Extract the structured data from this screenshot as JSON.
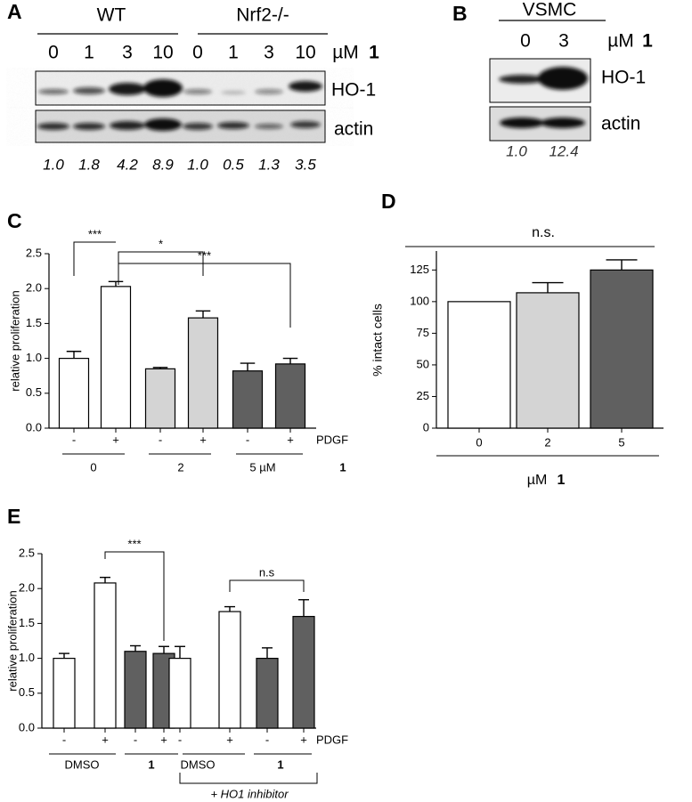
{
  "blot_a": {
    "label": "A",
    "groups": [
      "WT",
      "Nrf2-/-"
    ],
    "doses": [
      "0",
      "1",
      "3",
      "10",
      "0",
      "1",
      "3",
      "10"
    ],
    "unit": "µM",
    "compound": "1",
    "bands": [
      "HO-1",
      "actin"
    ],
    "quant": [
      "1.0",
      "1.8",
      "4.2",
      "8.9",
      "1.0",
      "0.5",
      "1.3",
      "3.5"
    ]
  },
  "blot_b": {
    "label": "B",
    "cells": "VSMC",
    "doses": [
      "0",
      "3"
    ],
    "unit": "µM",
    "compound": "1",
    "bands": [
      "HO-1",
      "actin"
    ],
    "quant": [
      "1.0",
      "12.4"
    ]
  },
  "chart_data": [
    {
      "type": "bar",
      "panel": "C",
      "ylabel": "relative proliferation",
      "categories": [
        "-",
        "+",
        "-",
        "+",
        "-",
        "+"
      ],
      "values": [
        1.0,
        2.03,
        0.85,
        1.58,
        0.82,
        0.92
      ],
      "errors": [
        0.1,
        0.07,
        0.02,
        0.1,
        0.11,
        0.08
      ],
      "colors": [
        "#ffffff",
        "#ffffff",
        "#d4d4d4",
        "#d4d4d4",
        "#606060",
        "#606060"
      ],
      "ylim": [
        0,
        2.5
      ],
      "yticks": [
        {
          "value": 0,
          "label": "0.0"
        },
        0.5,
        {
          "value": 1,
          "label": "1.0"
        },
        1.5,
        {
          "value": 2,
          "label": "2.0"
        },
        2.5
      ],
      "row_label": "PDGF",
      "groups": [
        "0",
        "2",
        "5 µM"
      ],
      "compound": "1",
      "annotations": [
        "***",
        "*",
        "***"
      ]
    },
    {
      "type": "bar",
      "panel": "D",
      "ylabel": "% intact cells",
      "categories": [
        "0",
        "2",
        "5"
      ],
      "values": [
        100,
        107,
        125
      ],
      "errors": [
        null,
        8,
        8
      ],
      "colors": [
        "#ffffff",
        "#d4d4d4",
        "#606060"
      ],
      "ylim": [
        0,
        140
      ],
      "yticks": [
        0,
        25,
        50,
        75,
        100,
        125
      ],
      "xlabel": "µM",
      "compound": "1",
      "annotations": [
        "n.s."
      ]
    },
    {
      "type": "bar",
      "panel": "E",
      "ylabel": "relative proliferation",
      "categories": [
        "-",
        "+",
        "-",
        "+",
        "-",
        "+",
        "-",
        "+"
      ],
      "values": [
        1.0,
        2.08,
        1.1,
        1.07,
        1.0,
        1.67,
        1.0,
        1.6
      ],
      "errors": [
        0.07,
        0.08,
        0.08,
        0.1,
        0.17,
        0.07,
        0.15,
        0.24
      ],
      "colors": [
        "#ffffff",
        "#ffffff",
        "#606060",
        "#606060",
        "#ffffff",
        "#ffffff",
        "#606060",
        "#606060"
      ],
      "ylim": [
        0,
        2.5
      ],
      "yticks": [
        {
          "value": 0,
          "label": "0.0"
        },
        0.5,
        {
          "value": 1,
          "label": "1.0"
        },
        1.5,
        {
          "value": 2,
          "label": "2.0"
        },
        2.5
      ],
      "row_label": "PDGF",
      "groups": [
        "DMSO",
        "1",
        "DMSO",
        "1"
      ],
      "bracket_label": "+ HO1 inhibitor",
      "annotations": [
        "***",
        "n.s"
      ]
    }
  ]
}
